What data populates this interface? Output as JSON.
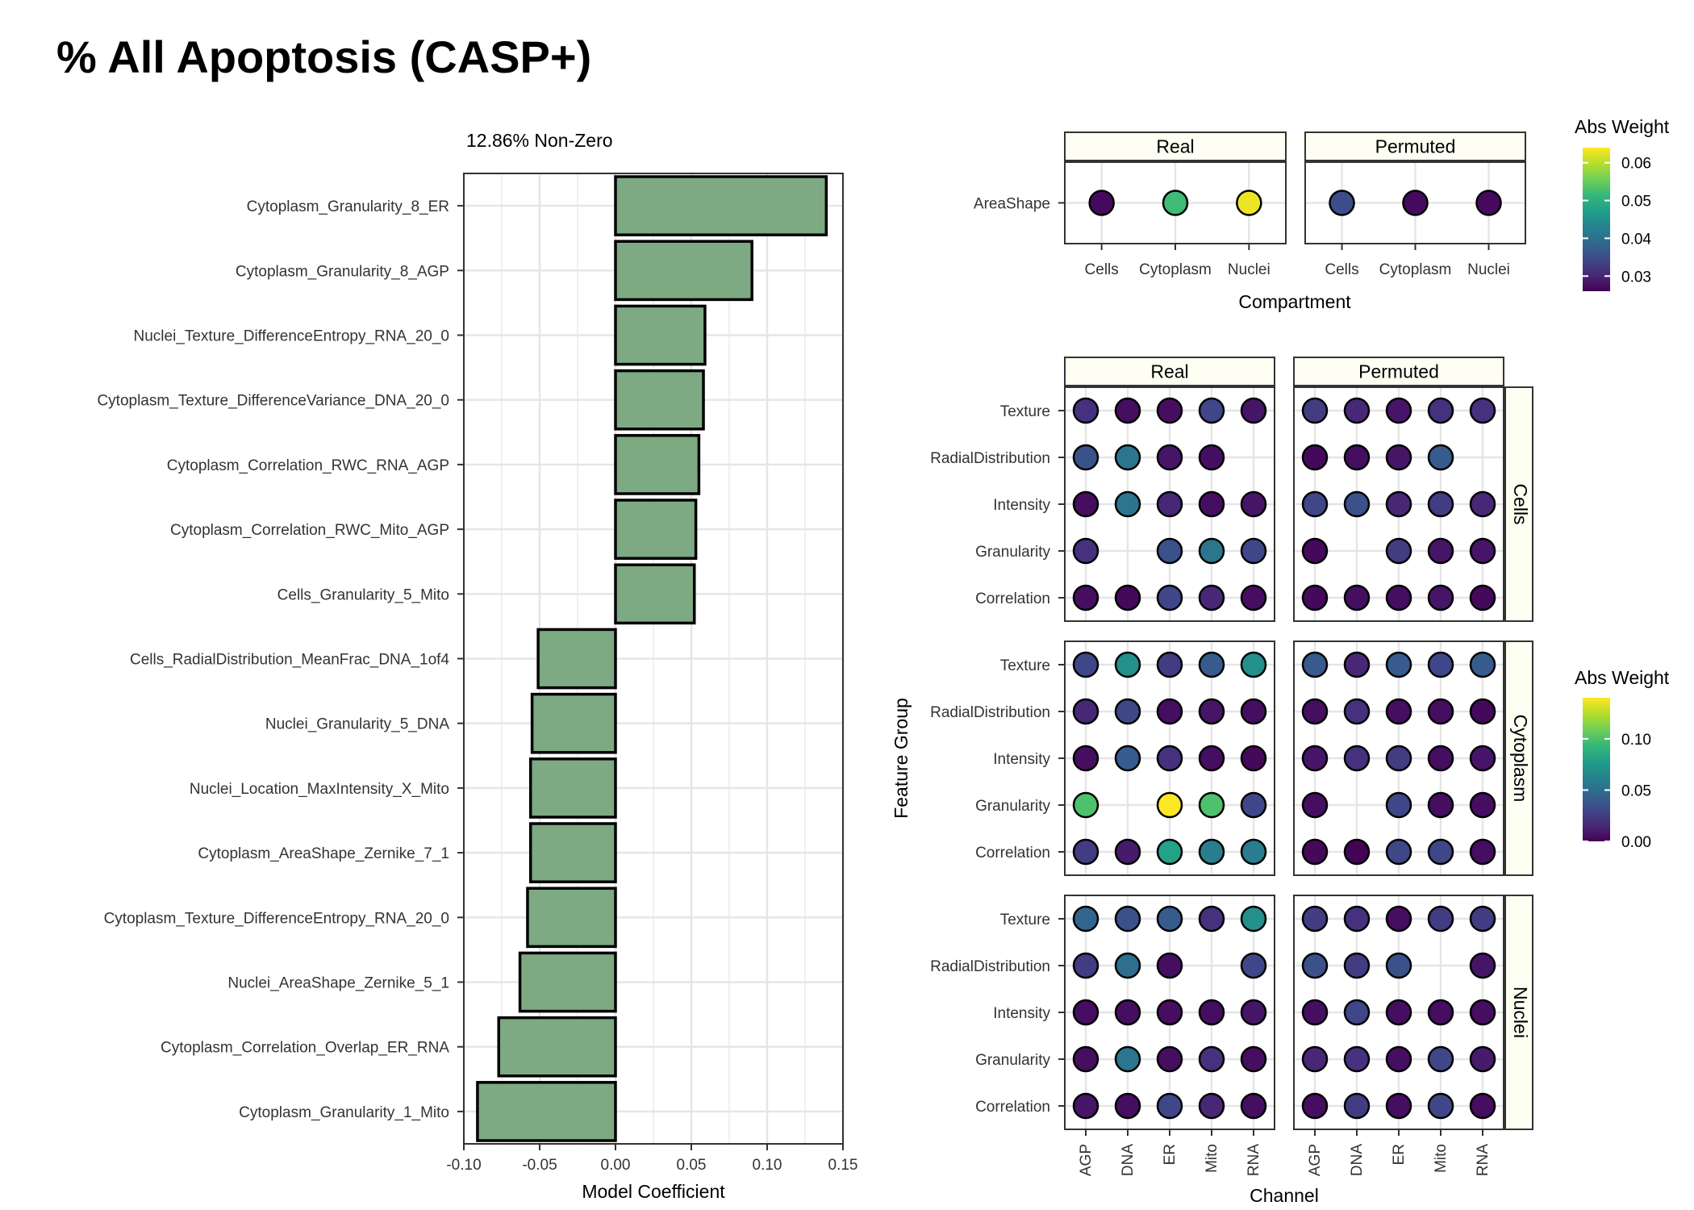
{
  "title": "% All Apoptosis (CASP+)",
  "colors": {
    "bar_fill": "#7da983",
    "strip_fill": "#fefff2",
    "grid": "#e5e5e5",
    "viridis": [
      "#440154",
      "#482878",
      "#3e4989",
      "#31688e",
      "#26828e",
      "#1f9e89",
      "#35b779",
      "#6ece58",
      "#b5de2b",
      "#fde725"
    ]
  },
  "chart_data": [
    {
      "type": "bar",
      "orientation": "horizontal",
      "subtitle": "12.86% Non-Zero",
      "xlabel": "Model Coefficient",
      "ylabel": "",
      "xlim": [
        -0.1,
        0.15
      ],
      "xticks": [
        "-0.10",
        "-0.05",
        "0.00",
        "0.05",
        "0.10",
        "0.15"
      ],
      "grid": true,
      "categories": [
        "Cytoplasm_Granularity_8_ER",
        "Cytoplasm_Granularity_8_AGP",
        "Nuclei_Texture_DifferenceEntropy_RNA_20_0",
        "Cytoplasm_Texture_DifferenceVariance_DNA_20_0",
        "Cytoplasm_Correlation_RWC_RNA_AGP",
        "Cytoplasm_Correlation_RWC_Mito_AGP",
        "Cells_Granularity_5_Mito",
        "Cells_RadialDistribution_MeanFrac_DNA_1of4",
        "Nuclei_Granularity_5_DNA",
        "Nuclei_Location_MaxIntensity_X_Mito",
        "Cytoplasm_AreaShape_Zernike_7_1",
        "Cytoplasm_Texture_DifferenceEntropy_RNA_20_0",
        "Nuclei_AreaShape_Zernike_5_1",
        "Cytoplasm_Correlation_Overlap_ER_RNA",
        "Cytoplasm_Granularity_1_Mito"
      ],
      "values": [
        0.139,
        0.09,
        0.059,
        0.058,
        0.055,
        0.053,
        0.052,
        -0.051,
        -0.055,
        -0.056,
        -0.056,
        -0.058,
        -0.063,
        -0.077,
        -0.091
      ]
    },
    {
      "type": "scatter",
      "subtype": "dot-grid",
      "xlabel": "Compartment",
      "ylabel": "",
      "panels": [
        "Real",
        "Permuted"
      ],
      "x_categories": [
        "Cells",
        "Cytoplasm",
        "Nuclei"
      ],
      "y_categories": [
        "AreaShape"
      ],
      "legend": {
        "title": "Abs Weight",
        "min": 0.026,
        "max": 0.064,
        "ticks": [
          0.03,
          0.04,
          0.05,
          0.06
        ],
        "tick_labels": [
          "0.03",
          "0.04",
          "0.05",
          "0.06"
        ],
        "placement": "right"
      },
      "values": {
        "Real": [
          [
            0.027,
            0.052,
            0.063
          ]
        ],
        "Permuted": [
          [
            0.035,
            0.027,
            0.027
          ]
        ]
      }
    },
    {
      "type": "scatter",
      "subtype": "dot-grid",
      "xlabel": "Channel",
      "ylabel": "Feature Group",
      "columns": [
        "Real",
        "Permuted"
      ],
      "rows": [
        "Cells",
        "Cytoplasm",
        "Nuclei"
      ],
      "x_categories": [
        "AGP",
        "DNA",
        "ER",
        "Mito",
        "RNA"
      ],
      "y_categories": [
        "Texture",
        "RadialDistribution",
        "Intensity",
        "Granularity",
        "Correlation"
      ],
      "legend": {
        "title": "Abs Weight",
        "min": 0.0,
        "max": 0.14,
        "ticks": [
          0.0,
          0.05,
          0.1
        ],
        "tick_labels": [
          "0.00",
          "0.05",
          "0.10"
        ],
        "placement": "right"
      },
      "values": {
        "Cells": {
          "Real": [
            [
              0.02,
              0.005,
              0.005,
              0.03,
              0.008
            ],
            [
              0.035,
              0.055,
              0.008,
              0.005,
              null
            ],
            [
              0.005,
              0.055,
              0.015,
              0.005,
              0.008
            ],
            [
              0.02,
              null,
              0.035,
              0.055,
              0.03
            ],
            [
              0.005,
              0.003,
              0.03,
              0.015,
              0.005
            ]
          ],
          "Permuted": [
            [
              0.025,
              0.015,
              0.008,
              0.02,
              0.02
            ],
            [
              0.003,
              0.005,
              0.008,
              0.04,
              null
            ],
            [
              0.03,
              0.035,
              0.015,
              0.025,
              0.015
            ],
            [
              0.003,
              null,
              0.025,
              0.008,
              0.008
            ],
            [
              0.003,
              0.005,
              0.005,
              0.008,
              0.003
            ]
          ]
        },
        "Cytoplasm": {
          "Real": [
            [
              0.03,
              0.07,
              0.025,
              0.04,
              0.07
            ],
            [
              0.015,
              0.03,
              0.005,
              0.008,
              0.005
            ],
            [
              0.005,
              0.04,
              0.02,
              0.005,
              0.003
            ],
            [
              0.1,
              null,
              0.14,
              0.1,
              0.03
            ],
            [
              0.025,
              0.01,
              0.08,
              0.06,
              0.06
            ]
          ],
          "Permuted": [
            [
              0.04,
              0.015,
              0.04,
              0.03,
              0.04
            ],
            [
              0.005,
              0.02,
              0.005,
              0.005,
              0.003
            ],
            [
              0.008,
              0.02,
              0.025,
              0.005,
              0.008
            ],
            [
              0.005,
              null,
              0.03,
              0.005,
              0.005
            ],
            [
              0.003,
              0.001,
              0.03,
              0.03,
              0.005
            ]
          ]
        },
        "Nuclei": {
          "Real": [
            [
              0.045,
              0.035,
              0.04,
              0.02,
              0.07
            ],
            [
              0.025,
              0.05,
              0.005,
              null,
              0.03
            ],
            [
              0.005,
              0.005,
              0.005,
              0.005,
              0.008
            ],
            [
              0.005,
              0.055,
              0.005,
              0.02,
              0.005
            ],
            [
              0.008,
              0.005,
              0.03,
              0.015,
              0.005
            ]
          ],
          "Permuted": [
            [
              0.025,
              0.02,
              0.005,
              0.025,
              0.025
            ],
            [
              0.035,
              0.025,
              0.035,
              null,
              0.008
            ],
            [
              0.005,
              0.03,
              0.005,
              0.005,
              0.005
            ],
            [
              0.015,
              0.02,
              0.005,
              0.03,
              0.01
            ],
            [
              0.005,
              0.025,
              0.005,
              0.03,
              0.005
            ]
          ]
        }
      }
    }
  ]
}
